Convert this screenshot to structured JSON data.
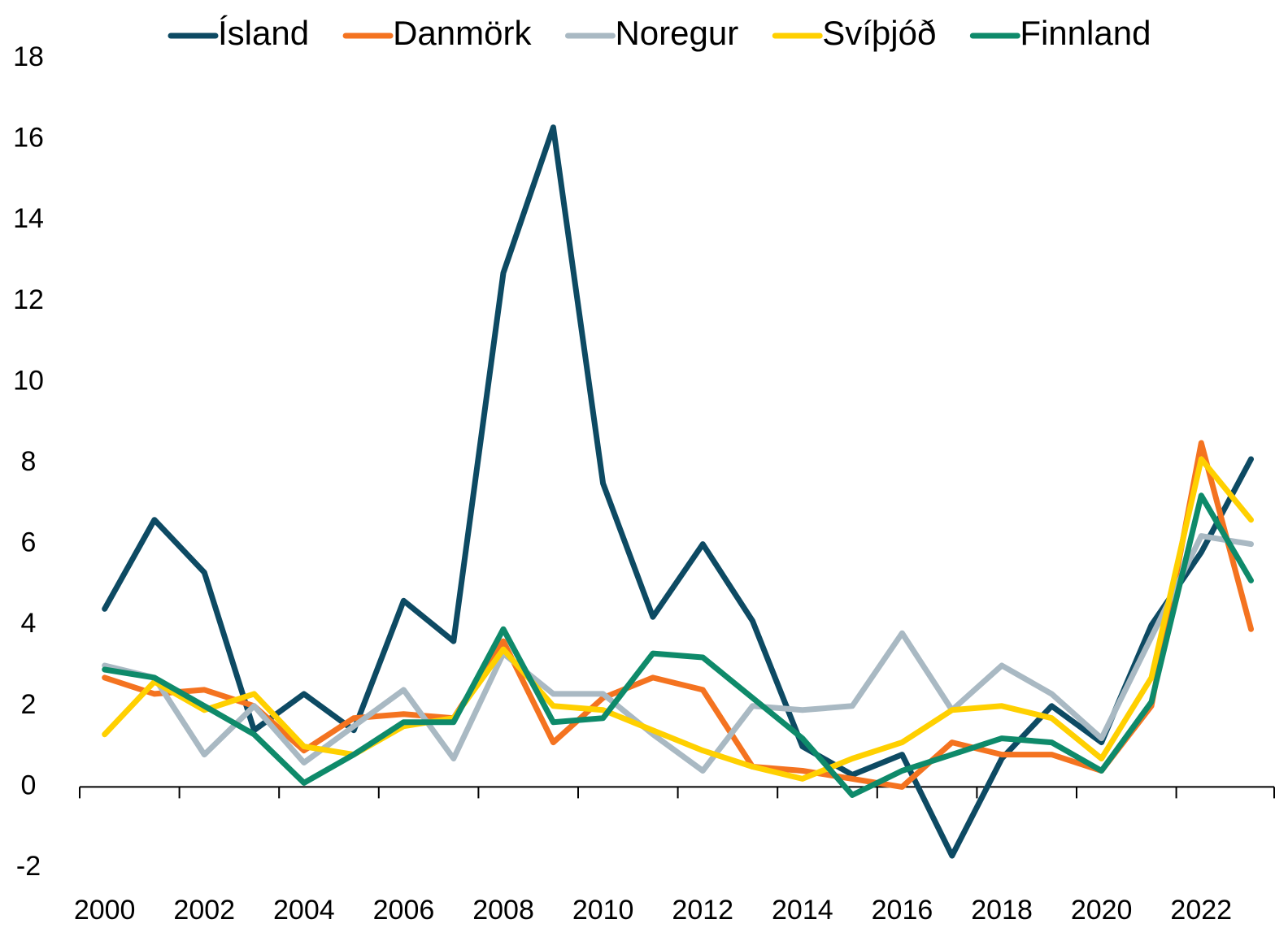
{
  "chart_data": {
    "type": "line",
    "categories": [
      "2000",
      null,
      "2002",
      null,
      "2004",
      null,
      "2006",
      null,
      "2008",
      null,
      "2010",
      null,
      "2012",
      null,
      "2014",
      null,
      "2016",
      null,
      "2018",
      null,
      "2020",
      null,
      "2022",
      null
    ],
    "series": [
      {
        "name": "Ísland",
        "color": "#0d4a63",
        "values": [
          4.4,
          6.6,
          5.3,
          1.4,
          2.3,
          1.4,
          4.6,
          3.6,
          12.7,
          16.3,
          7.5,
          4.2,
          6.0,
          4.1,
          1.0,
          0.3,
          0.8,
          -1.7,
          0.7,
          2.0,
          1.1,
          4.0,
          5.8,
          8.1
        ]
      },
      {
        "name": "Danmörk",
        "color": "#f47320",
        "values": [
          2.7,
          2.3,
          2.4,
          2.0,
          0.9,
          1.7,
          1.8,
          1.7,
          3.6,
          1.1,
          2.2,
          2.7,
          2.4,
          0.5,
          0.4,
          0.2,
          0.0,
          1.1,
          0.8,
          0.8,
          0.4,
          2.0,
          8.5,
          3.9
        ]
      },
      {
        "name": "Noregur",
        "color": "#a9b9c3",
        "values": [
          3.0,
          2.7,
          0.8,
          2.0,
          0.6,
          1.5,
          2.4,
          0.7,
          3.3,
          2.3,
          2.3,
          1.3,
          0.4,
          2.0,
          1.9,
          2.0,
          3.8,
          1.9,
          3.0,
          2.3,
          1.2,
          3.7,
          6.2,
          6.0
        ]
      },
      {
        "name": "Svíþjóð",
        "color": "#ffd000",
        "values": [
          1.3,
          2.6,
          1.9,
          2.3,
          1.0,
          0.8,
          1.5,
          1.7,
          3.4,
          2.0,
          1.9,
          1.4,
          0.9,
          0.5,
          0.2,
          0.7,
          1.1,
          1.9,
          2.0,
          1.7,
          0.7,
          2.7,
          8.1,
          6.6
        ]
      },
      {
        "name": "Finnland",
        "color": "#0e8a6a",
        "values": [
          2.9,
          2.7,
          2.0,
          1.3,
          0.1,
          0.8,
          1.6,
          1.6,
          3.9,
          1.6,
          1.7,
          3.3,
          3.2,
          2.2,
          1.2,
          -0.2,
          0.4,
          0.8,
          1.2,
          1.1,
          0.4,
          2.1,
          7.2,
          5.1
        ]
      }
    ],
    "ylim": [
      -2,
      18
    ],
    "yticks": [
      -2,
      0,
      2,
      4,
      6,
      8,
      10,
      12,
      14,
      16,
      18
    ],
    "grid": false,
    "legend": "top"
  }
}
